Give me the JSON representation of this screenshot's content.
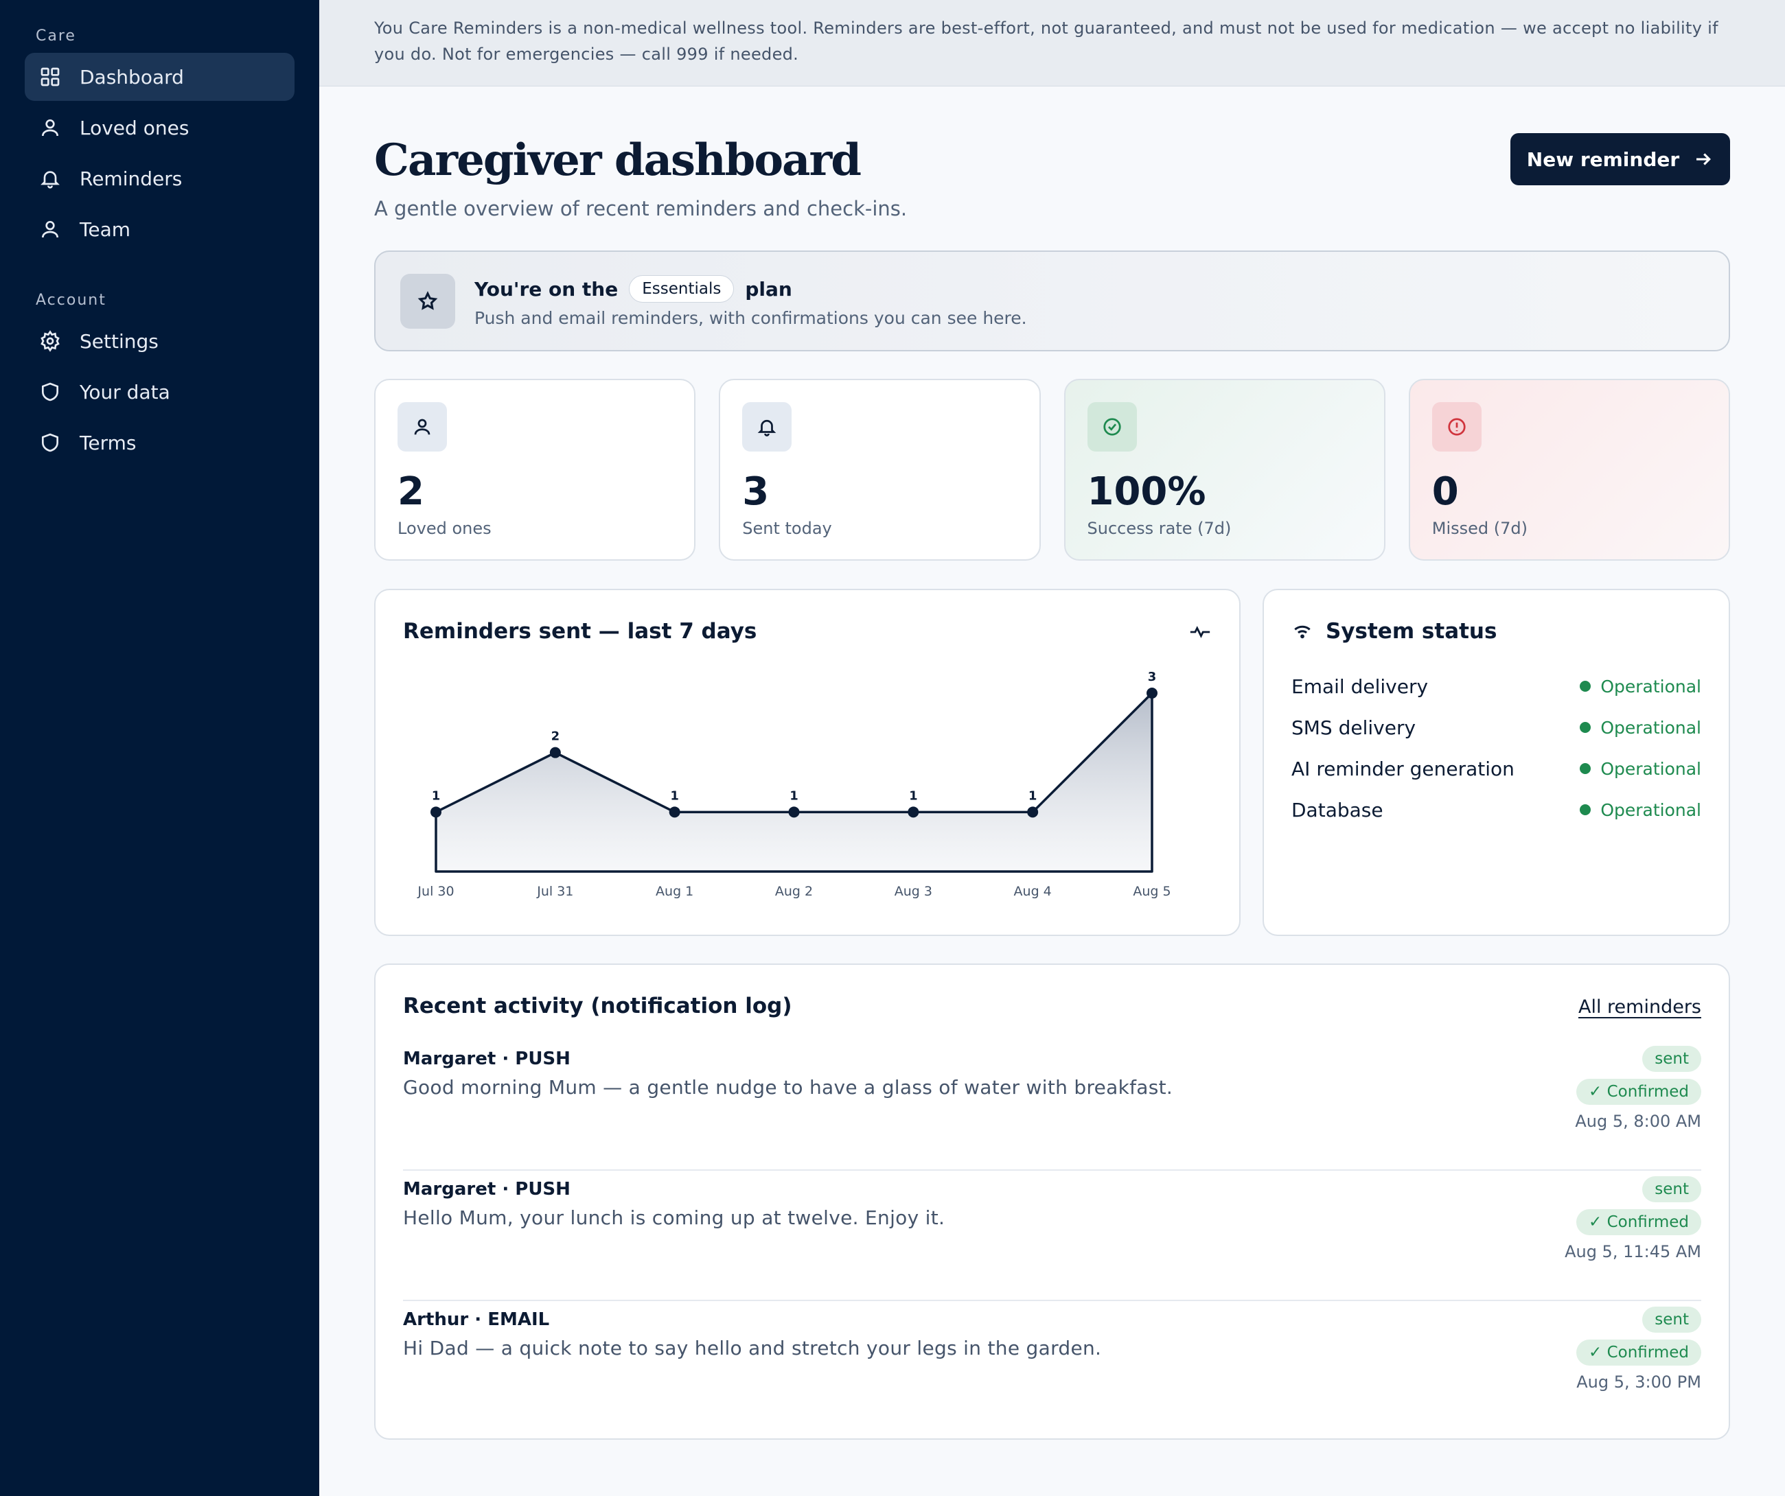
{
  "sidebar": {
    "section_care": "Care",
    "section_account": "Account",
    "items": [
      {
        "label": "Dashboard",
        "icon": "grid-icon"
      },
      {
        "label": "Loved ones",
        "icon": "user-icon"
      },
      {
        "label": "Reminders",
        "icon": "bell-icon"
      },
      {
        "label": "Team",
        "icon": "user-icon"
      },
      {
        "label": "Settings",
        "icon": "gear-icon"
      },
      {
        "label": "Your data",
        "icon": "shield-icon"
      },
      {
        "label": "Terms",
        "icon": "shield-icon"
      }
    ],
    "active": "Dashboard"
  },
  "banner": {
    "text": "You Care Reminders is a non-medical wellness tool. Reminders are best-effort, not guaranteed, and must not be used for medication — we accept no liability if you do. Not for emergencies — call 999 if needed."
  },
  "header": {
    "title": "Caregiver dashboard",
    "subtitle": "A gentle overview of recent reminders and check-ins.",
    "new_button": "New reminder"
  },
  "plan": {
    "prefix": "You're on the",
    "name": "Essentials",
    "suffix": "plan",
    "description": "Push and email reminders, with confirmations you can see here."
  },
  "stats": [
    {
      "value": "2",
      "label": "Loved ones",
      "icon": "user-icon"
    },
    {
      "value": "3",
      "label": "Sent today",
      "icon": "bell-icon"
    },
    {
      "value": "100%",
      "label": "Success rate (7d)",
      "icon": "check-circle-icon"
    },
    {
      "value": "0",
      "label": "Missed (7d)",
      "icon": "alert-circle-icon"
    }
  ],
  "chart": {
    "title": "Reminders sent — last 7 days"
  },
  "chart_data": {
    "type": "area",
    "categories": [
      "Jul 30",
      "Jul 31",
      "Aug 1",
      "Aug 2",
      "Aug 3",
      "Aug 4",
      "Aug 5"
    ],
    "values": [
      1,
      2,
      1,
      1,
      1,
      1,
      3
    ],
    "ylim": [
      0,
      3
    ],
    "grid": false,
    "data_labels": true,
    "line_color": "#0b1c36"
  },
  "system_status": {
    "title": "System status",
    "items": [
      {
        "name": "Email delivery",
        "status": "Operational"
      },
      {
        "name": "SMS delivery",
        "status": "Operational"
      },
      {
        "name": "AI reminder generation",
        "status": "Operational"
      },
      {
        "name": "Database",
        "status": "Operational"
      }
    ]
  },
  "activity": {
    "title": "Recent activity (notification log)",
    "link": "All reminders",
    "items": [
      {
        "who": "Margaret · PUSH",
        "message": "Good morning Mum — a gentle nudge to have a glass of water with breakfast.",
        "status": "sent",
        "confirmation": "✓ Confirmed",
        "time": "Aug 5, 8:00 AM"
      },
      {
        "who": "Margaret · PUSH",
        "message": "Hello Mum, your lunch is coming up at twelve. Enjoy it.",
        "status": "sent",
        "confirmation": "✓ Confirmed",
        "time": "Aug 5, 11:45 AM"
      },
      {
        "who": "Arthur · EMAIL",
        "message": "Hi Dad — a quick note to say hello and stretch your legs in the garden.",
        "status": "sent",
        "confirmation": "✓ Confirmed",
        "time": "Aug 5, 3:00 PM"
      }
    ]
  },
  "colors": {
    "sidebar_bg": "#011938",
    "primary": "#0b1c36",
    "success": "#1e8a4f",
    "danger": "#d0343d"
  }
}
